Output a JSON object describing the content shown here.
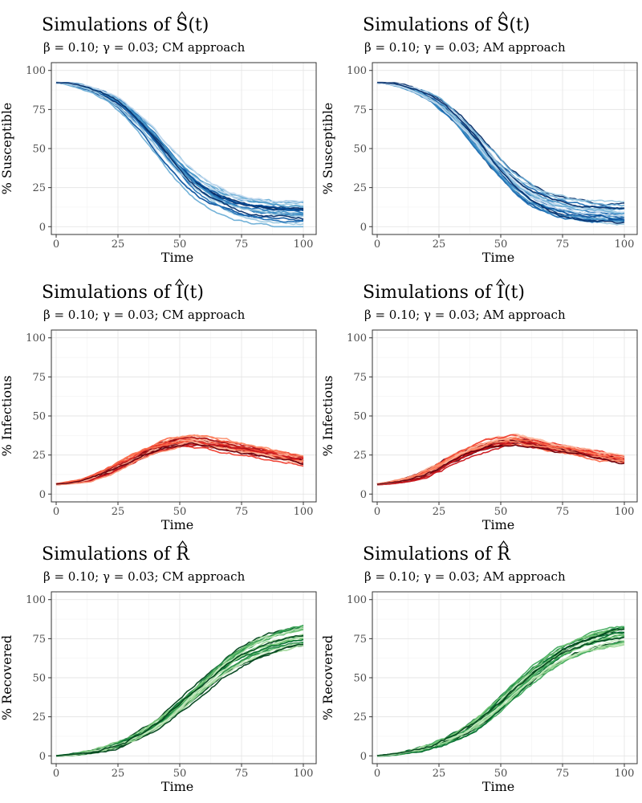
{
  "figure": {
    "background": "#ffffff"
  },
  "chart_data": [
    {
      "type": "line",
      "title_prefix": "Simulations of",
      "title_symbol": "S",
      "title_suffix": "(t)",
      "subtitle": "β = 0.10; γ = 0.03; CM approach",
      "xlabel": "Time",
      "ylabel": "% Susceptible",
      "xlim": [
        0,
        100
      ],
      "ylim": [
        0,
        100
      ],
      "xticks": [
        0,
        25,
        50,
        75,
        100
      ],
      "yticks": [
        0,
        25,
        50,
        75,
        100
      ],
      "grid": true,
      "palette": "blue",
      "colors": [
        "#08306b",
        "#08519c",
        "#2171b5",
        "#4292c6",
        "#6baed6",
        "#9ecae1",
        "#c6dbef"
      ],
      "curve": "susceptible",
      "x": [
        0,
        10,
        20,
        30,
        40,
        50,
        60,
        70,
        80,
        90,
        100
      ],
      "series": [
        {
          "values": [
            95,
            91,
            83,
            71,
            55,
            40,
            27,
            19,
            13,
            10,
            8
          ]
        }
      ]
    },
    {
      "type": "line",
      "title_prefix": "Simulations of",
      "title_symbol": "S",
      "title_suffix": "(t)",
      "subtitle": "β = 0.10; γ = 0.03; AM approach",
      "xlabel": "Time",
      "ylabel": "% Susceptible",
      "xlim": [
        0,
        100
      ],
      "ylim": [
        0,
        100
      ],
      "xticks": [
        0,
        25,
        50,
        75,
        100
      ],
      "yticks": [
        0,
        25,
        50,
        75,
        100
      ],
      "grid": true,
      "palette": "blue",
      "colors": [
        "#08306b",
        "#08519c",
        "#2171b5",
        "#4292c6",
        "#6baed6",
        "#9ecae1",
        "#c6dbef"
      ],
      "curve": "susceptible",
      "x": [
        0,
        10,
        20,
        30,
        40,
        50,
        60,
        70,
        80,
        90,
        100
      ],
      "series": [
        {
          "values": [
            95,
            91,
            83,
            71,
            55,
            40,
            27,
            19,
            13,
            10,
            8
          ]
        }
      ]
    },
    {
      "type": "line",
      "title_prefix": "Simulations of",
      "title_symbol": "I",
      "title_suffix": "(t)",
      "subtitle": "β = 0.10; γ = 0.03; CM approach",
      "xlabel": "Time",
      "ylabel": "% Infectious",
      "xlim": [
        0,
        100
      ],
      "ylim": [
        0,
        100
      ],
      "xticks": [
        0,
        25,
        50,
        75,
        100
      ],
      "yticks": [
        0,
        25,
        50,
        75,
        100
      ],
      "grid": true,
      "palette": "red",
      "colors": [
        "#67000d",
        "#a50f15",
        "#cb181d",
        "#ef3b2c",
        "#fb6a4a",
        "#fc9272",
        "#fcbba1"
      ],
      "curve": "infectious",
      "x": [
        0,
        10,
        20,
        30,
        40,
        50,
        60,
        70,
        80,
        90,
        100
      ],
      "series": [
        {
          "values": [
            5,
            9,
            15,
            23,
            31,
            36,
            36,
            33,
            28,
            24,
            19
          ]
        }
      ]
    },
    {
      "type": "line",
      "title_prefix": "Simulations of",
      "title_symbol": "I",
      "title_suffix": "(t)",
      "subtitle": "β = 0.10; γ = 0.03; AM approach",
      "xlabel": "Time",
      "ylabel": "% Infectious",
      "xlim": [
        0,
        100
      ],
      "ylim": [
        0,
        100
      ],
      "xticks": [
        0,
        25,
        50,
        75,
        100
      ],
      "yticks": [
        0,
        25,
        50,
        75,
        100
      ],
      "grid": true,
      "palette": "red",
      "colors": [
        "#67000d",
        "#a50f15",
        "#cb181d",
        "#ef3b2c",
        "#fb6a4a",
        "#fc9272",
        "#fcbba1"
      ],
      "curve": "infectious",
      "x": [
        0,
        10,
        20,
        30,
        40,
        50,
        60,
        70,
        80,
        90,
        100
      ],
      "series": [
        {
          "values": [
            5,
            9,
            15,
            23,
            31,
            36,
            36,
            33,
            28,
            24,
            19
          ]
        }
      ]
    },
    {
      "type": "line",
      "title_prefix": "Simulations of",
      "title_symbol": "R",
      "title_suffix": "",
      "subtitle": "β = 0.10; γ = 0.03; CM approach",
      "xlabel": "Time",
      "ylabel": "% Recovered",
      "xlim": [
        0,
        100
      ],
      "ylim": [
        0,
        100
      ],
      "xticks": [
        0,
        25,
        50,
        75,
        100
      ],
      "yticks": [
        0,
        25,
        50,
        75,
        100
      ],
      "grid": true,
      "palette": "green",
      "colors": [
        "#00441b",
        "#006d2c",
        "#238b45",
        "#41ab5d",
        "#74c476",
        "#a1d99b",
        "#c7e9c0"
      ],
      "curve": "recovered",
      "x": [
        0,
        10,
        20,
        30,
        40,
        50,
        60,
        70,
        80,
        90,
        100
      ],
      "series": [
        {
          "values": [
            0,
            2,
            5,
            10,
            18,
            28,
            40,
            52,
            62,
            68,
            74
          ]
        }
      ]
    },
    {
      "type": "line",
      "title_prefix": "Simulations of",
      "title_symbol": "R",
      "title_suffix": "",
      "subtitle": "β = 0.10; γ = 0.03; AM approach",
      "xlabel": "Time",
      "ylabel": "% Recovered",
      "xlim": [
        0,
        100
      ],
      "ylim": [
        0,
        100
      ],
      "xticks": [
        0,
        25,
        50,
        75,
        100
      ],
      "yticks": [
        0,
        25,
        50,
        75,
        100
      ],
      "grid": true,
      "palette": "green",
      "colors": [
        "#00441b",
        "#006d2c",
        "#238b45",
        "#41ab5d",
        "#74c476",
        "#a1d99b",
        "#c7e9c0"
      ],
      "curve": "recovered",
      "x": [
        0,
        10,
        20,
        30,
        40,
        50,
        60,
        70,
        80,
        90,
        100
      ],
      "series": [
        {
          "values": [
            0,
            2,
            5,
            10,
            18,
            28,
            40,
            52,
            62,
            68,
            74
          ]
        }
      ]
    }
  ]
}
